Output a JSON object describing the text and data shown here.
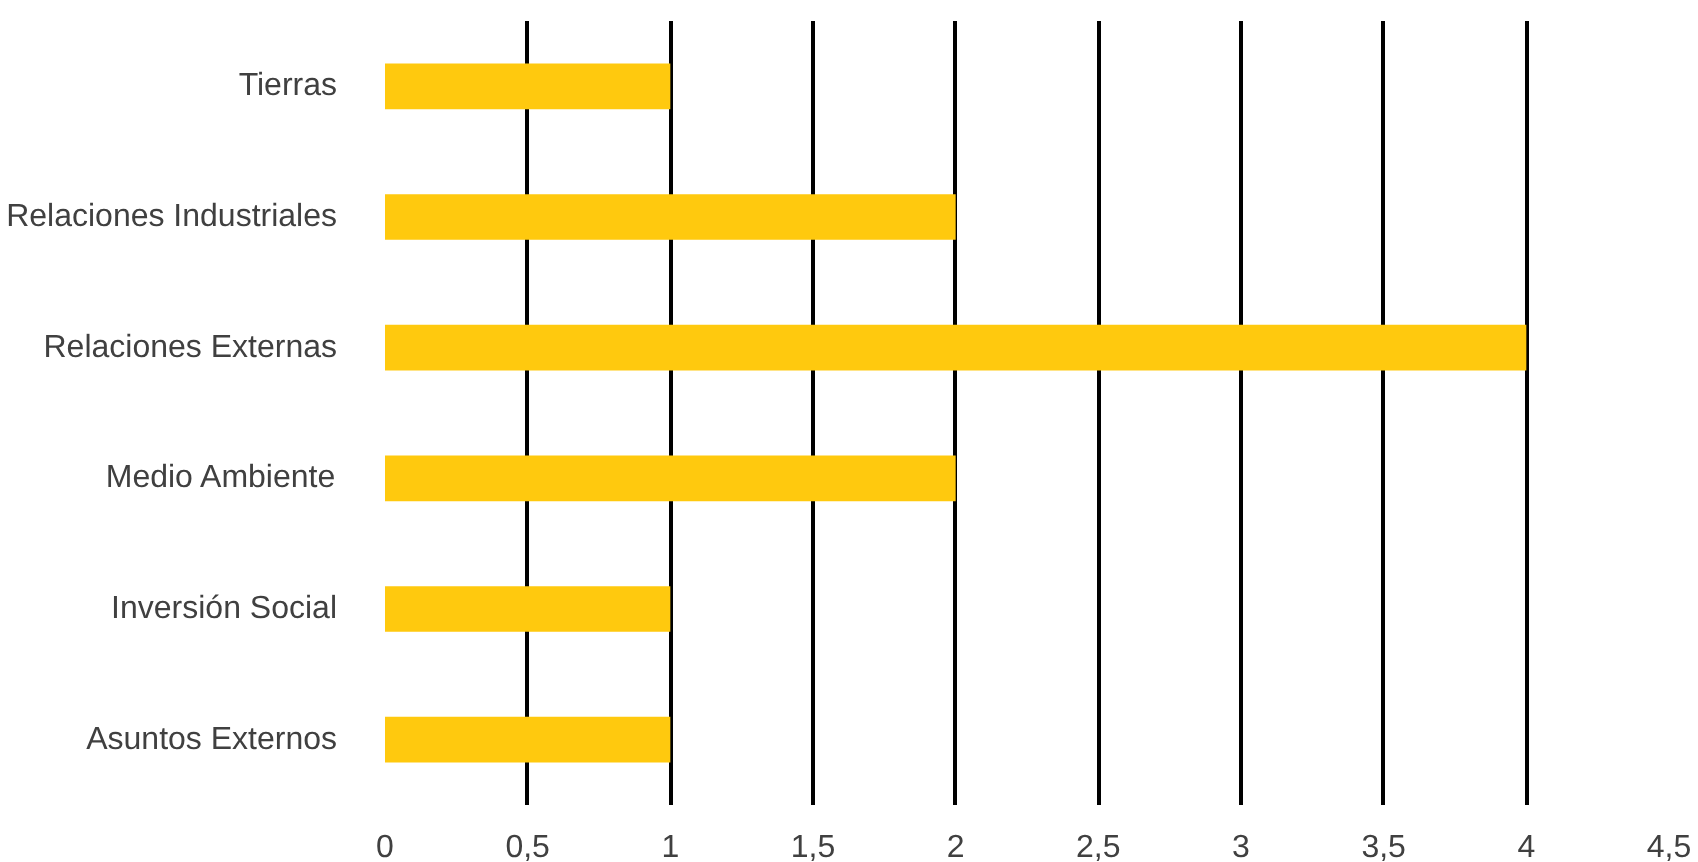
{
  "chart_data": {
    "type": "bar",
    "orientation": "horizontal",
    "categories": [
      "Tierras",
      "Relaciones Industriales",
      "Relaciones Externas",
      "Medio Ambiente",
      "Inversión Social",
      "Asuntos Externos"
    ],
    "values": [
      1,
      2,
      4,
      2,
      1,
      1
    ],
    "color": "#ffc90e",
    "xlim": [
      0,
      4.5
    ],
    "xticks": [
      0,
      {
        "value": 0.5,
        "label": "0,5"
      },
      1,
      {
        "value": 1.5,
        "label": "1,5"
      },
      2,
      {
        "value": 2.5,
        "label": "2,5"
      },
      3,
      {
        "value": 3.5,
        "label": "3,5"
      },
      4,
      {
        "value": 4.5,
        "label": "4,5"
      }
    ],
    "grid": "x"
  }
}
